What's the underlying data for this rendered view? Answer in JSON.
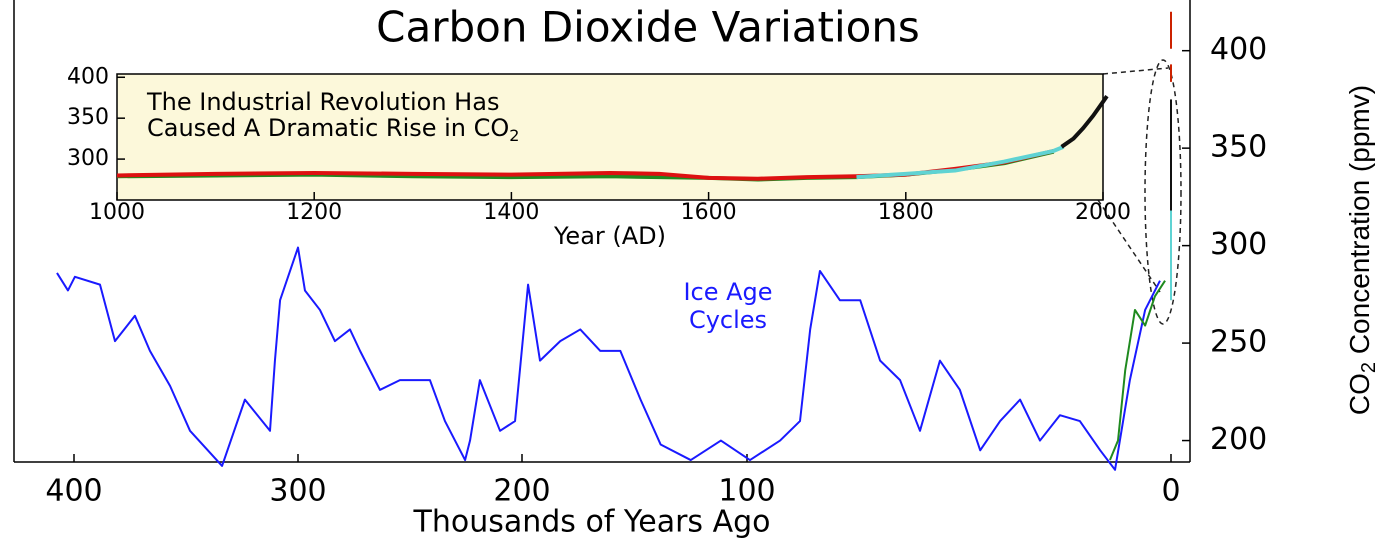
{
  "chart_data": [
    {
      "type": "line",
      "title": "Carbon Dioxide Variations",
      "xlabel": "Thousands of Years Ago",
      "ylabel_parts": [
        "CO",
        "2",
        " Concentration (ppmv)"
      ],
      "annotation_lines": [
        "Ice Age",
        "Cycles"
      ],
      "annotation_color": "#1a1aff",
      "xlim": [
        427,
        -4.5
      ],
      "ylim": [
        189,
        426
      ],
      "xticks": [
        400,
        300,
        200,
        100,
        0
      ],
      "yticks": [
        200,
        250,
        300,
        350,
        400
      ],
      "series": [
        {
          "color": "#1a1aff",
          "x": [
            407.6,
            402.7,
            399.6,
            388.4,
            381.7,
            372.8,
            366.1,
            357.1,
            348.2,
            333.9,
            323.7,
            312.5,
            310.3,
            308,
            300,
            296.9,
            290.2,
            283.5,
            276.8,
            272.3,
            263.4,
            254.5,
            241.1,
            234.4,
            225.4,
            223.2,
            218.8,
            209.8,
            203.1,
            197.3,
            192,
            183,
            174.1,
            165.2,
            156.3,
            147.3,
            138.4,
            125,
            111.6,
            99.3,
            92.2,
            87.5,
            85.1,
            82.8,
            78.1,
            73.3,
            68.6,
            63.9,
            59.2,
            54.5,
            49.8,
            45,
            40.3,
            35.6,
            30.9,
            26.2,
            21.5,
            16.7,
            13.2,
            9.7,
            6.1,
            2.6
          ],
          "values": [
            286,
            277,
            284,
            280,
            251,
            264,
            246,
            228,
            205,
            187,
            221,
            205,
            241,
            272,
            299,
            277,
            267,
            251,
            257,
            246,
            226,
            231,
            231,
            210,
            190,
            200,
            231,
            205,
            210,
            280,
            241,
            251,
            257,
            246,
            246,
            221,
            198,
            190,
            200,
            190,
            200,
            210,
            257,
            287,
            272,
            272,
            241,
            231,
            205,
            241,
            226,
            195,
            210,
            221,
            200,
            213,
            210,
            195,
            185,
            231,
            267,
            282
          ]
        },
        {
          "color": "#1f8a1f",
          "x": [
            14.4,
            12.5,
            10.8,
            8.5,
            6.1,
            3.8,
            1.4
          ],
          "values": [
            190,
            200,
            236,
            267,
            259,
            274,
            282
          ]
        },
        {
          "color": "#5fd3d3",
          "x": [
            0,
            0
          ],
          "values": [
            272,
            318
          ]
        },
        {
          "color": "#111111",
          "x": [
            0,
            0
          ],
          "values": [
            318,
            375
          ]
        },
        {
          "color": "#cc2200",
          "x": [
            0,
            0,
            0,
            0,
            0
          ],
          "values": [
            420,
            401,
            null,
            393,
            384
          ]
        }
      ]
    },
    {
      "type": "line",
      "xlabel": "Year (AD)",
      "annotation_lines": [
        "The Industrial Revolution Has",
        "Caused A Dramatic Rise in CO"
      ],
      "annotation_sub": "2",
      "xlim": [
        1000,
        2000
      ],
      "ylim": [
        250,
        404
      ],
      "xticks": [
        1000,
        1200,
        1400,
        1600,
        1800,
        2000
      ],
      "yticks": [
        300,
        350,
        400
      ],
      "background": "#fcf8da",
      "series": [
        {
          "color": "#1f8a1f",
          "x": [
            1000,
            1100,
            1200,
            1300,
            1400,
            1500,
            1600,
            1650,
            1700,
            1750,
            1800,
            1850,
            1900,
            1950
          ],
          "values": [
            279,
            280,
            281,
            279,
            278,
            279,
            277,
            275,
            277,
            278,
            281,
            287,
            295,
            309
          ]
        },
        {
          "color": "#dd1111",
          "x": [
            1000,
            1100,
            1200,
            1300,
            1400,
            1500,
            1550,
            1600,
            1650,
            1700,
            1750,
            1800,
            1850,
            1900,
            1950
          ],
          "values": [
            280,
            282,
            283,
            282,
            281,
            283,
            282,
            277,
            276,
            278,
            279,
            281,
            288,
            296,
            310
          ]
        },
        {
          "color": "#5fd3d3",
          "x": [
            1750,
            1800,
            1850,
            1900,
            1950,
            1960
          ],
          "values": [
            278,
            282,
            286,
            297,
            310,
            315
          ]
        },
        {
          "color": "#111111",
          "x": [
            1958,
            1970,
            1980,
            1990,
            2000,
            2004
          ],
          "values": [
            315,
            325,
            338,
            353,
            370,
            377
          ]
        }
      ]
    }
  ]
}
